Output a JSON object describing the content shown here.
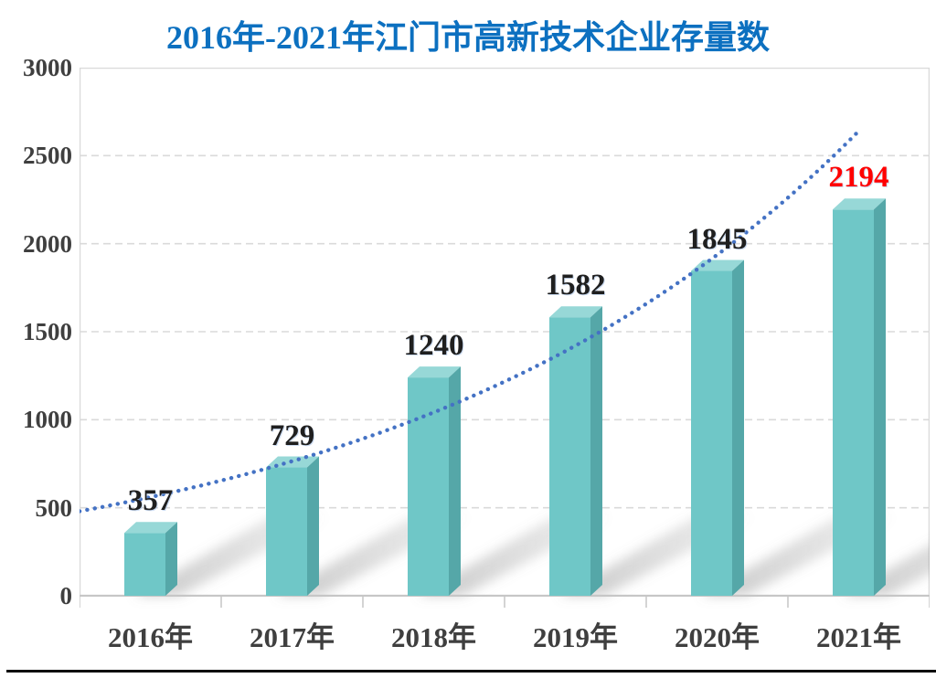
{
  "chart_data": {
    "type": "bar",
    "title": "2016年-2021年江门市高新技术企业存量数",
    "categories": [
      "2016年",
      "2017年",
      "2018年",
      "2019年",
      "2020年",
      "2021年"
    ],
    "values": [
      357,
      729,
      1240,
      1582,
      1845,
      2194
    ],
    "value_labels": [
      "357",
      "729",
      "1240",
      "1582",
      "1845",
      "2194"
    ],
    "value_label_colors": [
      "#1f1f1f",
      "#1f1f1f",
      "#1f1f1f",
      "#1f1f1f",
      "#1f1f1f",
      "#ff0000"
    ],
    "xlabel": "",
    "ylabel": "",
    "ylim": [
      0,
      3000
    ],
    "yticks": [
      0,
      500,
      1000,
      1500,
      2000,
      2500,
      3000
    ],
    "grid": "horizontal-dashed",
    "legend": "none",
    "bar_style": "3d-column",
    "trendline": {
      "style": "dotted",
      "shape": "exponential",
      "start_value": 480,
      "end_value": 2640
    },
    "colors": {
      "title": "#0c70c0",
      "axis_text": "#3f3f3f",
      "bar_front": "#6fc7c7",
      "bar_top": "#97d8d7",
      "bar_side": "#55a7a8",
      "trend": "#4472c4",
      "grid": "#dadada",
      "baseline": "#c6c6c6",
      "plot_border": "#d9d9d9",
      "shadow": "#808080"
    }
  }
}
